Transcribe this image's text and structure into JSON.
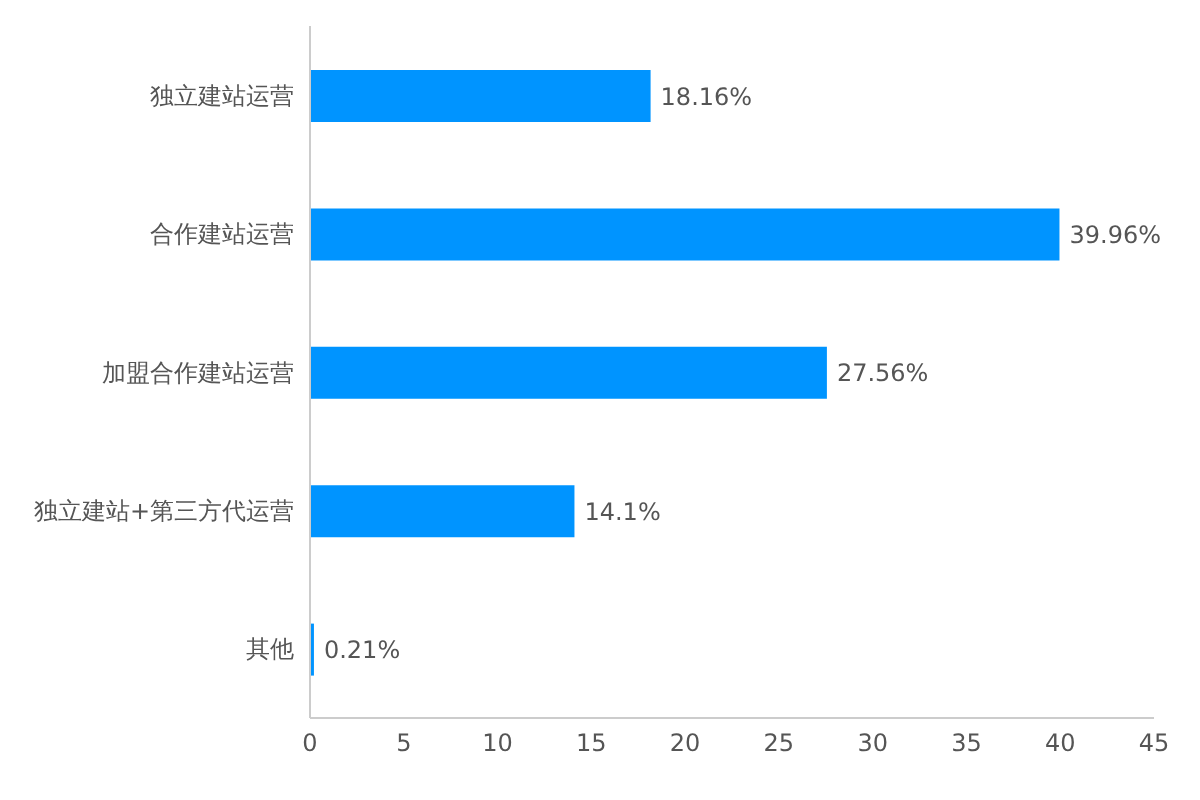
{
  "chart_data": {
    "type": "bar",
    "orientation": "horizontal",
    "categories": [
      "独立建站运营",
      "合作建站运营",
      "加盟合作建站运营",
      "独立建站+第三方代运营",
      "其他"
    ],
    "values": [
      18.16,
      39.96,
      27.56,
      14.1,
      0.21
    ],
    "value_labels": [
      "18.16%",
      "39.96%",
      "27.56%",
      "14.1%",
      "0.21%"
    ],
    "color": "#0094ff",
    "xlim": [
      0,
      45
    ],
    "xticks": [
      0,
      5,
      10,
      15,
      20,
      25,
      30,
      35,
      40,
      45
    ]
  }
}
